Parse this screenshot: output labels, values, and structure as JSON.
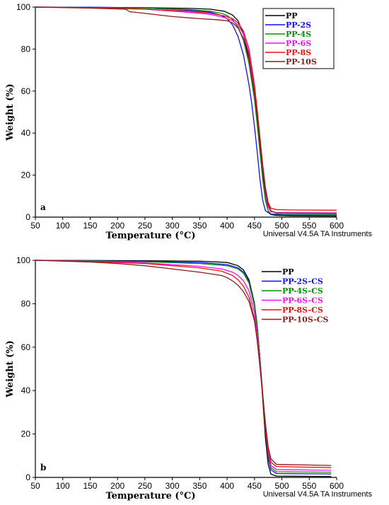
{
  "chart_data": [
    {
      "type": "line",
      "panel_label": "a",
      "xlabel": "Temperature (°C)",
      "ylabel": "Weight (%)",
      "footer": "Universal V4.5A TA Instruments",
      "xlim": [
        50,
        600
      ],
      "ylim": [
        0,
        100
      ],
      "xticks": [
        50,
        100,
        150,
        200,
        250,
        300,
        350,
        400,
        450,
        500,
        550,
        600
      ],
      "yticks": [
        0,
        20,
        40,
        60,
        80,
        100
      ],
      "legend_position": "top-right",
      "legend_box": true,
      "series": [
        {
          "name": "PP",
          "color": "#000000",
          "x": [
            50,
            150,
            250,
            330,
            370,
            395,
            410,
            420,
            430,
            440,
            450,
            455,
            460,
            465,
            470,
            475,
            480,
            490,
            520,
            600
          ],
          "y": [
            100,
            99.9,
            99.7,
            99.4,
            99.0,
            98.0,
            96.2,
            93.5,
            87,
            76,
            58,
            46,
            33,
            20,
            9,
            3,
            1.2,
            0.8,
            0.6,
            0.5
          ]
        },
        {
          "name": "PP-2S",
          "color": "#1010ee",
          "x": [
            50,
            150,
            250,
            330,
            370,
            390,
            400,
            410,
            420,
            430,
            440,
            445,
            450,
            455,
            460,
            465,
            470,
            480,
            500,
            600
          ],
          "y": [
            100,
            99.9,
            99.6,
            98.5,
            97.5,
            96.0,
            94.5,
            91.5,
            86,
            77,
            63,
            54,
            43,
            31,
            18,
            8,
            3,
            1.3,
            1.1,
            1.0
          ]
        },
        {
          "name": "PP-4S",
          "color": "#0d8a0d",
          "x": [
            50,
            150,
            250,
            330,
            370,
            390,
            400,
            410,
            420,
            430,
            440,
            450,
            455,
            460,
            465,
            470,
            475,
            480,
            500,
            600
          ],
          "y": [
            100,
            99.8,
            99.5,
            98.8,
            98.0,
            97.0,
            96.0,
            94.0,
            90.5,
            84,
            73,
            56,
            44,
            31,
            18,
            8,
            3,
            1.6,
            1.4,
            1.3
          ]
        },
        {
          "name": "PP-6S",
          "color": "#ee10ee",
          "x": [
            50,
            150,
            250,
            330,
            370,
            395,
            410,
            420,
            430,
            440,
            450,
            455,
            460,
            465,
            470,
            475,
            480,
            490,
            520,
            600
          ],
          "y": [
            100,
            99.7,
            99.0,
            97.5,
            96.5,
            95.0,
            93.5,
            91.5,
            87,
            78,
            61,
            49,
            36,
            23,
            12,
            5,
            2.6,
            2.2,
            2.1,
            2.0
          ]
        },
        {
          "name": "PP-8S",
          "color": "#ee1010",
          "x": [
            50,
            150,
            250,
            330,
            370,
            395,
            410,
            420,
            430,
            440,
            450,
            455,
            460,
            465,
            470,
            475,
            480,
            490,
            520,
            600
          ],
          "y": [
            100,
            99.6,
            99.0,
            98.0,
            97.0,
            95.8,
            94.5,
            92.5,
            88.5,
            80,
            63,
            51,
            38,
            25,
            14,
            7,
            4.2,
            3.6,
            3.4,
            3.3
          ]
        },
        {
          "name": "PP-10S",
          "color": "#8b1a1a",
          "x": [
            50,
            150,
            215,
            222,
            250,
            300,
            350,
            380,
            400,
            410,
            420,
            430,
            440,
            450,
            455,
            460,
            465,
            470,
            475,
            480,
            490,
            600
          ],
          "y": [
            100,
            99.5,
            99.0,
            97.8,
            97.0,
            95.5,
            94.5,
            94.0,
            93.5,
            92.5,
            90,
            85,
            75,
            59,
            48,
            36,
            24,
            13,
            6,
            3,
            2.0,
            1.8
          ]
        }
      ]
    },
    {
      "type": "line",
      "panel_label": "b",
      "xlabel": "Temperature (°C)",
      "ylabel": "Weight (%)",
      "footer": "Universal V4.5A TA Instruments",
      "xlim": [
        50,
        600
      ],
      "ylim": [
        0,
        100
      ],
      "xticks": [
        50,
        100,
        150,
        200,
        250,
        300,
        350,
        400,
        450,
        500,
        550,
        600
      ],
      "yticks": [
        0,
        20,
        40,
        60,
        80,
        100
      ],
      "legend_position": "top-right",
      "legend_box": false,
      "series": [
        {
          "name": "PP",
          "color": "#000000",
          "x": [
            50,
            150,
            250,
            350,
            400,
            420,
            430,
            440,
            450,
            455,
            460,
            465,
            470,
            475,
            480,
            490,
            590
          ],
          "y": [
            100,
            99.9,
            99.8,
            99.6,
            99.0,
            97.5,
            95.5,
            91,
            80,
            70,
            55,
            36,
            18,
            6,
            1.5,
            0.6,
            0.4
          ]
        },
        {
          "name": "PP-2S-CS",
          "color": "#1010ee",
          "x": [
            50,
            150,
            250,
            350,
            400,
            420,
            430,
            440,
            450,
            455,
            460,
            465,
            470,
            475,
            480,
            490,
            590
          ],
          "y": [
            100,
            99.8,
            99.5,
            99.0,
            98.0,
            96.5,
            94.5,
            90,
            79,
            69,
            55,
            38,
            21,
            9,
            3.5,
            1.8,
            1.6
          ]
        },
        {
          "name": "PP-4S-CS",
          "color": "#0d8a0d",
          "x": [
            50,
            150,
            250,
            350,
            400,
            420,
            430,
            440,
            450,
            455,
            460,
            465,
            470,
            475,
            480,
            490,
            590
          ],
          "y": [
            100,
            99.7,
            99.3,
            98.5,
            97.5,
            96.0,
            94.0,
            89.5,
            79,
            69,
            55,
            39,
            22,
            10,
            4.5,
            2.6,
            2.4
          ]
        },
        {
          "name": "PP-6S-CS",
          "color": "#ee10ee",
          "x": [
            50,
            150,
            250,
            350,
            390,
            410,
            420,
            430,
            440,
            450,
            455,
            460,
            465,
            470,
            475,
            480,
            490,
            590
          ],
          "y": [
            100,
            99.5,
            98.8,
            97.2,
            96.0,
            94.5,
            93.0,
            90.5,
            86,
            76,
            66,
            53,
            38,
            23,
            11,
            5.5,
            3.6,
            3.3
          ]
        },
        {
          "name": "PP-8S-CS",
          "color": "#ee1010",
          "x": [
            50,
            150,
            250,
            350,
            390,
            410,
            420,
            430,
            440,
            450,
            455,
            460,
            465,
            470,
            475,
            480,
            490,
            590
          ],
          "y": [
            100,
            99.4,
            98.5,
            96.5,
            95.0,
            93.0,
            91.0,
            88,
            83,
            73,
            63,
            51,
            37,
            23,
            12,
            7,
            5.0,
            4.5
          ]
        },
        {
          "name": "PP-10S-CS",
          "color": "#8b1a1a",
          "x": [
            50,
            150,
            200,
            250,
            300,
            350,
            390,
            400,
            410,
            420,
            430,
            440,
            450,
            455,
            460,
            465,
            470,
            475,
            480,
            490,
            590
          ],
          "y": [
            100,
            99.2,
            98.5,
            97.5,
            96.0,
            94.5,
            93.0,
            92.0,
            90.5,
            88.5,
            85.5,
            81,
            72,
            63,
            51,
            38,
            25,
            14,
            8.5,
            6.0,
            5.5
          ]
        }
      ]
    }
  ]
}
